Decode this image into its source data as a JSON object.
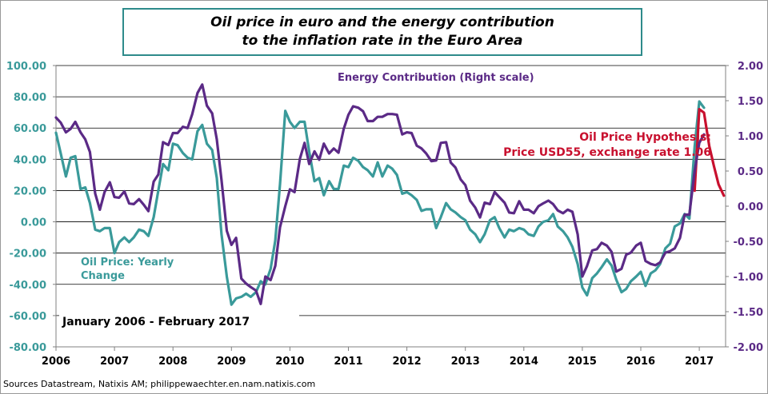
{
  "title": {
    "line1": "Oil price in euro and the energy contribution",
    "line2": "to the inflation rate in the Euro Area"
  },
  "source": "Sources Datastream, Natixis AM; philippewaechter.en.nam.natixis.com",
  "colors": {
    "oil": "#3a9a9a",
    "energy": "#5b2a86",
    "hypothesis": "#c8102e",
    "title_border": "#2e8b8b"
  },
  "chart_data": {
    "type": "line",
    "period_label": "January 2006 - February 2017",
    "y_left": {
      "range": [
        -80,
        100
      ],
      "ticks": [
        "100.00",
        "80.00",
        "60.00",
        "40.00",
        "20.00",
        "0.00",
        "-20.00",
        "-40.00",
        "-60.00",
        "-80.00"
      ],
      "color": "#3a9a9a"
    },
    "y_right": {
      "range": [
        -2,
        2
      ],
      "ticks": [
        "2.00",
        "1.50",
        "1.00",
        "0.50",
        "0.00",
        "-0.50",
        "-1.00",
        "-1.50",
        "-2.00"
      ],
      "color": "#5b2a86"
    },
    "x_ticks": [
      "2006",
      "2007",
      "2008",
      "2009",
      "2010",
      "2011",
      "2012",
      "2013",
      "2014",
      "2015",
      "2016",
      "2017"
    ],
    "x_range": [
      2006.0,
      2017.45
    ],
    "grid": "horizontal",
    "series": [
      {
        "name": "Oil Price: Yearly Change",
        "axis": "left",
        "color": "#3a9a9a",
        "points": [
          [
            2006.0,
            57
          ],
          [
            2006.08,
            44
          ],
          [
            2006.17,
            29
          ],
          [
            2006.25,
            41
          ],
          [
            2006.33,
            42
          ],
          [
            2006.42,
            21
          ],
          [
            2006.5,
            22
          ],
          [
            2006.58,
            12
          ],
          [
            2006.67,
            -5
          ],
          [
            2006.75,
            -6
          ],
          [
            2006.83,
            -4
          ],
          [
            2006.92,
            -4
          ],
          [
            2007.0,
            -20
          ],
          [
            2007.08,
            -13
          ],
          [
            2007.17,
            -10
          ],
          [
            2007.25,
            -13
          ],
          [
            2007.33,
            -10
          ],
          [
            2007.42,
            -5
          ],
          [
            2007.5,
            -6
          ],
          [
            2007.58,
            -9
          ],
          [
            2007.67,
            3
          ],
          [
            2007.75,
            20
          ],
          [
            2007.83,
            37
          ],
          [
            2007.92,
            33
          ],
          [
            2008.0,
            50
          ],
          [
            2008.08,
            49
          ],
          [
            2008.17,
            44
          ],
          [
            2008.25,
            41
          ],
          [
            2008.33,
            40
          ],
          [
            2008.42,
            58
          ],
          [
            2008.5,
            62
          ],
          [
            2008.58,
            50
          ],
          [
            2008.67,
            46
          ],
          [
            2008.75,
            28
          ],
          [
            2008.83,
            -8
          ],
          [
            2008.92,
            -35
          ],
          [
            2009.0,
            -53
          ],
          [
            2009.08,
            -49
          ],
          [
            2009.17,
            -48
          ],
          [
            2009.25,
            -46
          ],
          [
            2009.33,
            -48
          ],
          [
            2009.42,
            -45
          ],
          [
            2009.5,
            -38
          ],
          [
            2009.58,
            -40
          ],
          [
            2009.67,
            -30
          ],
          [
            2009.75,
            -12
          ],
          [
            2009.83,
            24
          ],
          [
            2009.92,
            71
          ],
          [
            2010.0,
            64
          ],
          [
            2010.08,
            60
          ],
          [
            2010.17,
            64
          ],
          [
            2010.25,
            64
          ],
          [
            2010.33,
            45
          ],
          [
            2010.42,
            26
          ],
          [
            2010.5,
            28
          ],
          [
            2010.58,
            17
          ],
          [
            2010.67,
            26
          ],
          [
            2010.75,
            21
          ],
          [
            2010.83,
            21
          ],
          [
            2010.92,
            36
          ],
          [
            2011.0,
            35
          ],
          [
            2011.08,
            41
          ],
          [
            2011.17,
            39
          ],
          [
            2011.25,
            35
          ],
          [
            2011.33,
            33
          ],
          [
            2011.42,
            29
          ],
          [
            2011.5,
            38
          ],
          [
            2011.58,
            29
          ],
          [
            2011.67,
            36
          ],
          [
            2011.75,
            34
          ],
          [
            2011.83,
            30
          ],
          [
            2011.92,
            18
          ],
          [
            2012.0,
            19
          ],
          [
            2012.08,
            17
          ],
          [
            2012.17,
            14
          ],
          [
            2012.25,
            7
          ],
          [
            2012.33,
            8
          ],
          [
            2012.42,
            8
          ],
          [
            2012.5,
            -4
          ],
          [
            2012.58,
            3
          ],
          [
            2012.67,
            12
          ],
          [
            2012.75,
            8
          ],
          [
            2012.83,
            6
          ],
          [
            2012.92,
            3
          ],
          [
            2013.0,
            1
          ],
          [
            2013.08,
            -5
          ],
          [
            2013.17,
            -8
          ],
          [
            2013.25,
            -13
          ],
          [
            2013.33,
            -8
          ],
          [
            2013.42,
            1
          ],
          [
            2013.5,
            3
          ],
          [
            2013.58,
            -4
          ],
          [
            2013.67,
            -10
          ],
          [
            2013.75,
            -5
          ],
          [
            2013.83,
            -6
          ],
          [
            2013.92,
            -4
          ],
          [
            2014.0,
            -5
          ],
          [
            2014.08,
            -8
          ],
          [
            2014.17,
            -9
          ],
          [
            2014.25,
            -3
          ],
          [
            2014.33,
            0
          ],
          [
            2014.42,
            1
          ],
          [
            2014.5,
            5
          ],
          [
            2014.58,
            -3
          ],
          [
            2014.67,
            -6
          ],
          [
            2014.75,
            -10
          ],
          [
            2014.83,
            -16
          ],
          [
            2014.92,
            -27
          ],
          [
            2015.0,
            -42
          ],
          [
            2015.08,
            -47
          ],
          [
            2015.17,
            -36
          ],
          [
            2015.25,
            -33
          ],
          [
            2015.33,
            -29
          ],
          [
            2015.42,
            -24
          ],
          [
            2015.5,
            -28
          ],
          [
            2015.58,
            -37
          ],
          [
            2015.67,
            -45
          ],
          [
            2015.75,
            -43
          ],
          [
            2015.83,
            -38
          ],
          [
            2015.92,
            -35
          ],
          [
            2016.0,
            -32
          ],
          [
            2016.08,
            -41
          ],
          [
            2016.17,
            -33
          ],
          [
            2016.25,
            -31
          ],
          [
            2016.33,
            -27
          ],
          [
            2016.42,
            -17
          ],
          [
            2016.5,
            -14
          ],
          [
            2016.58,
            -3
          ],
          [
            2016.67,
            -1
          ],
          [
            2016.75,
            5
          ],
          [
            2016.83,
            2
          ],
          [
            2016.92,
            48
          ],
          [
            2017.0,
            77
          ],
          [
            2017.08,
            73
          ]
        ]
      },
      {
        "name": "Energy Contribution (Right scale)",
        "axis": "right",
        "color": "#5b2a86",
        "points": [
          [
            2006.0,
            1.26
          ],
          [
            2006.08,
            1.19
          ],
          [
            2006.17,
            1.05
          ],
          [
            2006.25,
            1.1
          ],
          [
            2006.33,
            1.2
          ],
          [
            2006.42,
            1.05
          ],
          [
            2006.5,
            0.95
          ],
          [
            2006.58,
            0.77
          ],
          [
            2006.67,
            0.18
          ],
          [
            2006.75,
            -0.05
          ],
          [
            2006.83,
            0.2
          ],
          [
            2006.92,
            0.34
          ],
          [
            2007.0,
            0.13
          ],
          [
            2007.08,
            0.12
          ],
          [
            2007.17,
            0.21
          ],
          [
            2007.25,
            0.04
          ],
          [
            2007.33,
            0.03
          ],
          [
            2007.42,
            0.1
          ],
          [
            2007.5,
            0.02
          ],
          [
            2007.58,
            -0.07
          ],
          [
            2007.67,
            0.35
          ],
          [
            2007.75,
            0.45
          ],
          [
            2007.83,
            0.91
          ],
          [
            2007.92,
            0.87
          ],
          [
            2008.0,
            1.04
          ],
          [
            2008.08,
            1.04
          ],
          [
            2008.17,
            1.13
          ],
          [
            2008.25,
            1.11
          ],
          [
            2008.33,
            1.31
          ],
          [
            2008.42,
            1.61
          ],
          [
            2008.5,
            1.73
          ],
          [
            2008.58,
            1.43
          ],
          [
            2008.67,
            1.32
          ],
          [
            2008.75,
            0.95
          ],
          [
            2008.83,
            0.37
          ],
          [
            2008.92,
            -0.35
          ],
          [
            2009.0,
            -0.55
          ],
          [
            2009.08,
            -0.45
          ],
          [
            2009.17,
            -1.03
          ],
          [
            2009.25,
            -1.1
          ],
          [
            2009.33,
            -1.15
          ],
          [
            2009.42,
            -1.2
          ],
          [
            2009.5,
            -1.39
          ],
          [
            2009.58,
            -1.0
          ],
          [
            2009.67,
            -1.05
          ],
          [
            2009.75,
            -0.85
          ],
          [
            2009.83,
            -0.3
          ],
          [
            2009.92,
            0.0
          ],
          [
            2010.0,
            0.24
          ],
          [
            2010.08,
            0.2
          ],
          [
            2010.17,
            0.67
          ],
          [
            2010.25,
            0.9
          ],
          [
            2010.33,
            0.6
          ],
          [
            2010.42,
            0.78
          ],
          [
            2010.5,
            0.66
          ],
          [
            2010.58,
            0.89
          ],
          [
            2010.67,
            0.75
          ],
          [
            2010.75,
            0.82
          ],
          [
            2010.83,
            0.76
          ],
          [
            2010.92,
            1.1
          ],
          [
            2011.0,
            1.3
          ],
          [
            2011.08,
            1.42
          ],
          [
            2011.17,
            1.4
          ],
          [
            2011.25,
            1.35
          ],
          [
            2011.33,
            1.21
          ],
          [
            2011.42,
            1.21
          ],
          [
            2011.5,
            1.27
          ],
          [
            2011.58,
            1.27
          ],
          [
            2011.67,
            1.31
          ],
          [
            2011.75,
            1.31
          ],
          [
            2011.83,
            1.3
          ],
          [
            2011.92,
            1.02
          ],
          [
            2012.0,
            1.05
          ],
          [
            2012.08,
            1.04
          ],
          [
            2012.17,
            0.86
          ],
          [
            2012.25,
            0.82
          ],
          [
            2012.33,
            0.75
          ],
          [
            2012.42,
            0.64
          ],
          [
            2012.5,
            0.65
          ],
          [
            2012.58,
            0.9
          ],
          [
            2012.67,
            0.91
          ],
          [
            2012.75,
            0.62
          ],
          [
            2012.83,
            0.55
          ],
          [
            2012.92,
            0.38
          ],
          [
            2013.0,
            0.3
          ],
          [
            2013.08,
            0.08
          ],
          [
            2013.17,
            -0.02
          ],
          [
            2013.25,
            -0.16
          ],
          [
            2013.33,
            0.05
          ],
          [
            2013.42,
            0.03
          ],
          [
            2013.5,
            0.2
          ],
          [
            2013.58,
            0.13
          ],
          [
            2013.67,
            0.05
          ],
          [
            2013.75,
            -0.09
          ],
          [
            2013.83,
            -0.1
          ],
          [
            2013.92,
            0.07
          ],
          [
            2014.0,
            -0.05
          ],
          [
            2014.08,
            -0.05
          ],
          [
            2014.17,
            -0.1
          ],
          [
            2014.25,
            0.0
          ],
          [
            2014.33,
            0.04
          ],
          [
            2014.42,
            0.08
          ],
          [
            2014.5,
            0.03
          ],
          [
            2014.58,
            -0.06
          ],
          [
            2014.67,
            -0.1
          ],
          [
            2014.75,
            -0.05
          ],
          [
            2014.83,
            -0.08
          ],
          [
            2014.92,
            -0.4
          ],
          [
            2015.0,
            -1.0
          ],
          [
            2015.08,
            -0.85
          ],
          [
            2015.17,
            -0.63
          ],
          [
            2015.25,
            -0.61
          ],
          [
            2015.33,
            -0.52
          ],
          [
            2015.42,
            -0.56
          ],
          [
            2015.5,
            -0.65
          ],
          [
            2015.58,
            -0.93
          ],
          [
            2015.67,
            -0.89
          ],
          [
            2015.75,
            -0.69
          ],
          [
            2015.83,
            -0.66
          ],
          [
            2015.92,
            -0.56
          ],
          [
            2016.0,
            -0.52
          ],
          [
            2016.08,
            -0.78
          ],
          [
            2016.17,
            -0.82
          ],
          [
            2016.25,
            -0.84
          ],
          [
            2016.33,
            -0.8
          ],
          [
            2016.42,
            -0.66
          ],
          [
            2016.5,
            -0.64
          ],
          [
            2016.58,
            -0.6
          ],
          [
            2016.67,
            -0.45
          ],
          [
            2016.75,
            -0.12
          ],
          [
            2016.83,
            -0.12
          ],
          [
            2016.92,
            0.5
          ],
          [
            2017.0,
            0.9
          ],
          [
            2017.08,
            1.02
          ]
        ]
      },
      {
        "name": "Oil Price Hypothesis",
        "axis": "right",
        "color": "#c8102e",
        "points": [
          [
            2016.92,
            0.22
          ],
          [
            2017.0,
            1.38
          ],
          [
            2017.08,
            1.33
          ],
          [
            2017.17,
            0.86
          ],
          [
            2017.25,
            0.57
          ],
          [
            2017.33,
            0.31
          ],
          [
            2017.42,
            0.15
          ]
        ]
      }
    ],
    "annotations": {
      "oil_label_1": "Oil Price: Yearly",
      "oil_label_2": "Change",
      "energy_label": "Energy Contribution (Right scale)",
      "hyp_label_1": "Oil Price Hypothesis:",
      "hyp_label_2": "Price USD55, exchange rate 1.06"
    }
  }
}
